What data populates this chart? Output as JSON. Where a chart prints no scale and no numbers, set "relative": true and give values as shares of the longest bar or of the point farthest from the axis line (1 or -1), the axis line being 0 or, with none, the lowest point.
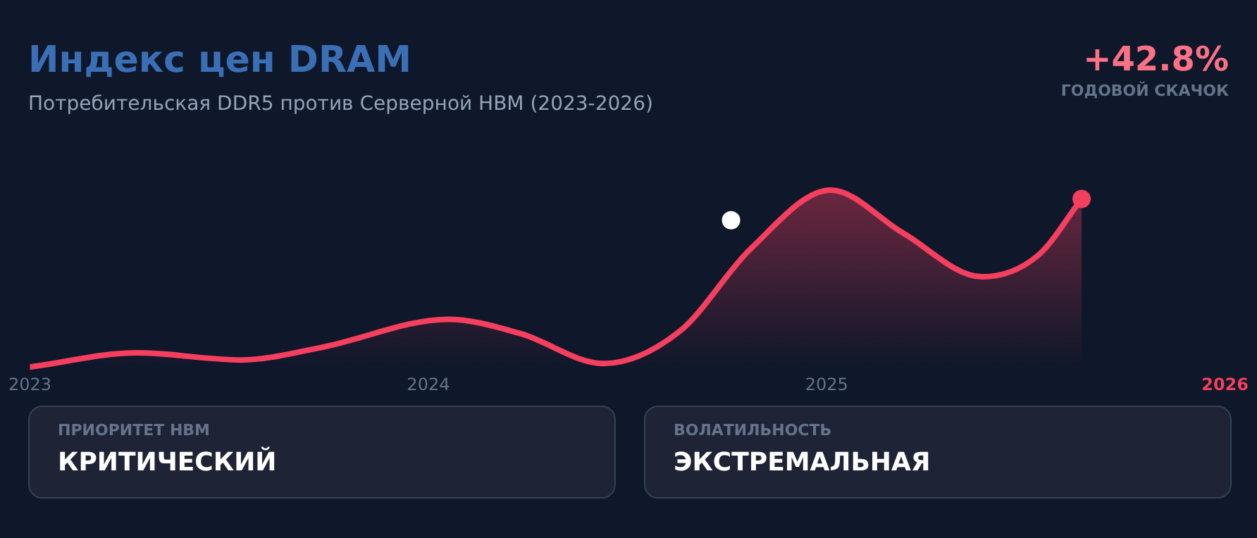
{
  "chart_data": {
    "type": "area",
    "title": "Индекс цен DRAM",
    "subtitle": "Потребительская DDR5 против Серверной HBM (2023-2026)",
    "relative": true,
    "xlim": [
      2023,
      2026
    ],
    "xticks": [
      2023,
      2024,
      2025,
      2026
    ],
    "legend": false,
    "series": [
      {
        "color": "#f43f5e",
        "x": [
          2023,
          2023.27,
          2023.53,
          2023.73,
          2024.05,
          2024.23,
          2024.44,
          2024.63,
          2024.81,
          2025.01,
          2025.19,
          2025.39,
          2025.53,
          2025.64
        ],
        "values": [
          0,
          0.08,
          0.04,
          0.11,
          0.27,
          0.19,
          0.02,
          0.2,
          0.67,
          1,
          0.76,
          0.51,
          0.63,
          0.95
        ]
      },
      {
        "type": "scatter",
        "color": "#f43f5e",
        "x": [
          2025.64
        ],
        "values": [
          0.95
        ]
      },
      {
        "type": "scatter",
        "color": "#ffffff",
        "x": [
          2024.76
        ],
        "values": [
          0.83
        ]
      }
    ],
    "annotations": [
      "+42.8%",
      "ГОДОВОЙ СКАЧОК",
      "ПРИОРИТЕТ HBM",
      "КРИТИЧЕСКИЙ",
      "ВОЛАТИЛЬНОСТЬ",
      "ЭКСТРЕМАЛЬНАЯ"
    ]
  }
}
